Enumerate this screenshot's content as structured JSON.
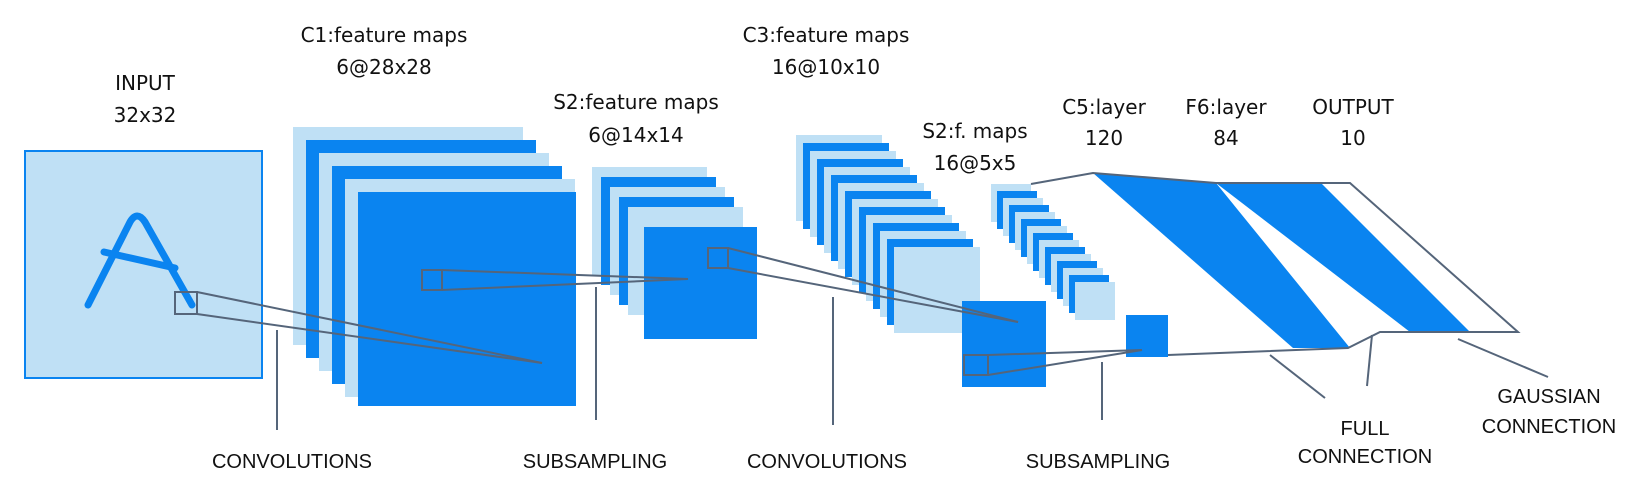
{
  "colors": {
    "light": "#bfe0f5",
    "blue": "#0a84f0",
    "line": "#55657a",
    "text": "#111111"
  },
  "layers": {
    "input": {
      "name": "INPUT",
      "size": "32x32",
      "glyph": "A"
    },
    "c1": {
      "name": "C1:feature maps",
      "size": "6@28x28",
      "maps": 6
    },
    "s2": {
      "name": "S2:feature maps",
      "size": "6@14x14",
      "maps": 6
    },
    "c3": {
      "name": "C3:feature maps",
      "size": "16@10x10",
      "maps": 16
    },
    "s4": {
      "name": "S2:f. maps",
      "size": "16@5x5",
      "maps": 16
    },
    "c5": {
      "name": "C5:layer",
      "size": "120"
    },
    "f6": {
      "name": "F6:layer",
      "size": "84"
    },
    "output": {
      "name": "OUTPUT",
      "size": "10"
    }
  },
  "operations": {
    "conv1": "CONVOLUTIONS",
    "sub1": "SUBSAMPLING",
    "conv2": "CONVOLUTIONS",
    "sub2": "SUBSAMPLING",
    "full_line1": "FULL",
    "full_line2": "CONNECTION",
    "gauss_line1": "GAUSSIAN",
    "gauss_line2": "CONNECTION"
  }
}
